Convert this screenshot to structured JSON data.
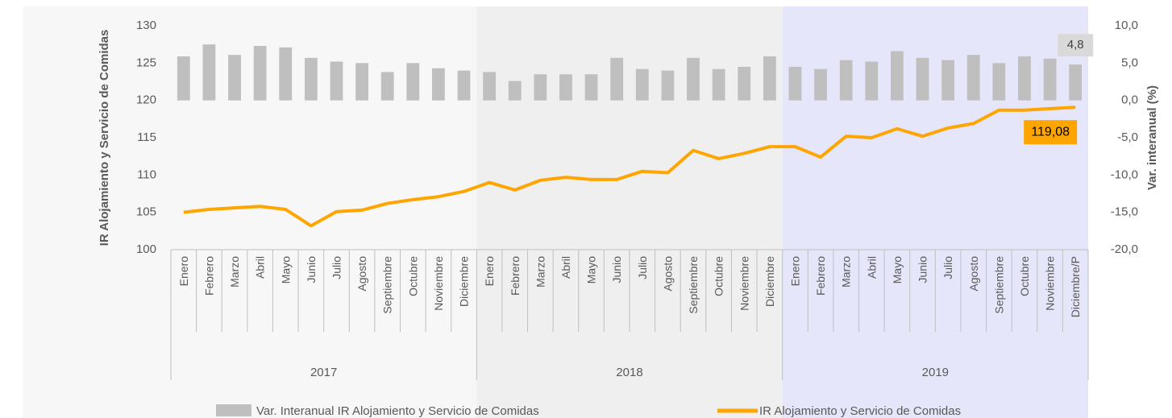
{
  "chart_data": {
    "type": "bar-line",
    "ylabel": "IR Alojamiento y Servicio de Comidas",
    "y2label": "Var. interanual (%)",
    "categories": [
      "Enero",
      "Febrero",
      "Marzo",
      "Abril",
      "Mayo",
      "Junio",
      "Julio",
      "Agosto",
      "Septiembre",
      "Octubre",
      "Noviembre",
      "Diciembre",
      "Enero",
      "Febrero",
      "Marzo",
      "Abril",
      "Mayo",
      "Junio",
      "Julio",
      "Agosto",
      "Septiembre",
      "Octubre",
      "Noviembre",
      "Diciembre",
      "Enero",
      "Febrero",
      "Marzo",
      "Abril",
      "Mayo",
      "Junio",
      "Julio",
      "Agosto",
      "Septiembre",
      "Octubre",
      "Noviembre",
      "Diciembre/P"
    ],
    "year_groups": [
      "2017",
      "2018",
      "2019"
    ],
    "ylim": [
      100,
      130
    ],
    "yticks": [
      100,
      105,
      110,
      115,
      120,
      125,
      130
    ],
    "y2lim": [
      -20,
      10
    ],
    "y2ticks": [
      {
        "value": -20,
        "label": "-20,0"
      },
      {
        "value": -15,
        "label": "-15,0"
      },
      {
        "value": -10,
        "label": "-10,0"
      },
      {
        "value": -5,
        "label": "-5,0"
      },
      {
        "value": 0,
        "label": "0,0"
      },
      {
        "value": 5,
        "label": "5,0"
      },
      {
        "value": 10,
        "label": "10,0"
      }
    ],
    "series": [
      {
        "name": "Var. Interanual IR Alojamiento y Servicio de Comidas",
        "type": "bar",
        "axis": "y2",
        "color": "#bfbfbf",
        "values": [
          5.9,
          7.5,
          6.1,
          7.3,
          7.1,
          5.7,
          5.2,
          5.0,
          3.8,
          5.0,
          4.3,
          4.0,
          3.8,
          2.6,
          3.5,
          3.5,
          3.5,
          5.7,
          4.2,
          4.0,
          5.7,
          4.2,
          4.5,
          5.9,
          4.5,
          4.2,
          5.4,
          5.2,
          6.6,
          5.7,
          5.4,
          6.1,
          5.0,
          5.9,
          5.6,
          4.8
        ],
        "value_labels": [
          null,
          null,
          null,
          null,
          null,
          null,
          null,
          null,
          null,
          null,
          null,
          null,
          null,
          null,
          null,
          null,
          null,
          null,
          null,
          null,
          null,
          null,
          null,
          null,
          null,
          null,
          null,
          null,
          null,
          null,
          null,
          null,
          null,
          null,
          null,
          "4,8"
        ]
      },
      {
        "name": "IR Alojamiento y Servicio de Comidas",
        "type": "line",
        "color": "#ffa500",
        "values": [
          105.0,
          105.4,
          105.6,
          105.8,
          105.4,
          103.2,
          105.1,
          105.3,
          106.2,
          106.7,
          107.1,
          107.8,
          109.0,
          108.0,
          109.3,
          109.7,
          109.4,
          109.4,
          110.5,
          110.3,
          113.3,
          112.2,
          112.9,
          113.8,
          113.8,
          112.4,
          115.2,
          115.0,
          116.2,
          115.2,
          116.3,
          116.9,
          118.7,
          118.7,
          118.9,
          119.08
        ],
        "value_labels": [
          null,
          null,
          null,
          null,
          null,
          null,
          null,
          null,
          null,
          null,
          null,
          null,
          null,
          null,
          null,
          null,
          null,
          null,
          null,
          null,
          null,
          null,
          null,
          null,
          null,
          null,
          null,
          null,
          null,
          null,
          null,
          null,
          null,
          null,
          null,
          "119,08"
        ]
      }
    ]
  }
}
